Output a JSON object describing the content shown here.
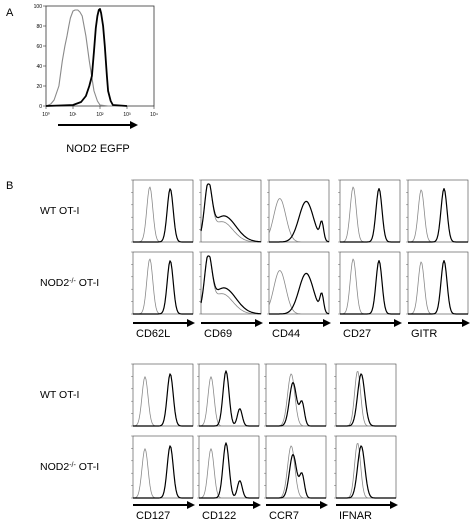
{
  "panel_labels": {
    "a": "A",
    "b": "B"
  },
  "colors": {
    "isotype": "#8a8a8a",
    "stained": "#000000",
    "frame": "#333333"
  },
  "chart_data": [
    {
      "type": "histogram",
      "panel": "A",
      "xlabel": "NOD2 EGFP",
      "x_scale": "log",
      "xlim": [
        1,
        10000
      ],
      "ylim": [
        0,
        100
      ],
      "y_ticks": [
        "0",
        "20",
        "40",
        "60",
        "80",
        "100"
      ],
      "x_ticks": [
        "10⁰",
        "10¹",
        "10²",
        "10³",
        "10⁴"
      ],
      "series": [
        {
          "role": "control",
          "x": [
            1,
            1.5,
            2,
            3,
            4,
            5,
            6,
            7,
            8,
            10,
            12,
            15,
            18,
            22,
            30,
            40,
            60,
            80,
            100,
            200,
            1000
          ],
          "y": [
            0,
            2,
            6,
            20,
            45,
            60,
            70,
            80,
            88,
            95,
            96,
            96,
            94,
            90,
            70,
            45,
            15,
            5,
            1,
            0,
            0
          ]
        },
        {
          "role": "stained",
          "x": [
            1,
            10,
            20,
            30,
            40,
            50,
            60,
            70,
            80,
            90,
            100,
            110,
            130,
            150,
            180,
            200,
            250,
            300,
            1000
          ],
          "y": [
            0,
            1,
            4,
            10,
            20,
            30,
            55,
            78,
            90,
            96,
            97,
            93,
            80,
            60,
            30,
            15,
            5,
            1,
            0
          ]
        }
      ]
    },
    {
      "type": "histogram-grid",
      "panel": "B",
      "rows": [
        {
          "label": "WT OT-I",
          "label_parts": [
            "WT OT-I"
          ]
        },
        {
          "label": "NOD2-/- OT-I",
          "label_parts": [
            "NOD2",
            "-/-",
            " OT-I"
          ]
        },
        {
          "label": "WT OT-I",
          "label_parts": [
            "WT OT-I"
          ]
        },
        {
          "label": "NOD2-/- OT-I",
          "label_parts": [
            "NOD2",
            "-/-",
            " OT-I"
          ]
        }
      ],
      "markers_top": [
        "CD62L",
        "CD69",
        "CD44",
        "CD27",
        "GITR"
      ],
      "markers_bottom": [
        "CD127",
        "CD122",
        "CCR7",
        "IFNAR"
      ],
      "x_scale": "log",
      "xlim": [
        1,
        10000
      ],
      "ylim": [
        0,
        100
      ]
    }
  ]
}
